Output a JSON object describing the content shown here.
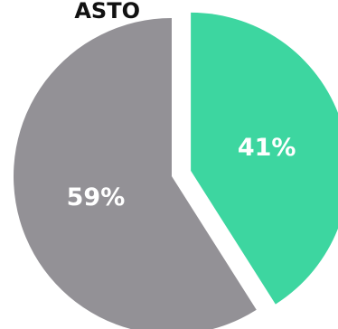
{
  "chart_data": {
    "type": "pie",
    "title": "ASTO",
    "values": [
      41,
      59
    ],
    "value_labels": [
      "41%",
      "59%"
    ],
    "colors": [
      "#3dd6a0",
      "#939196"
    ],
    "explode": [
      true,
      false
    ]
  }
}
